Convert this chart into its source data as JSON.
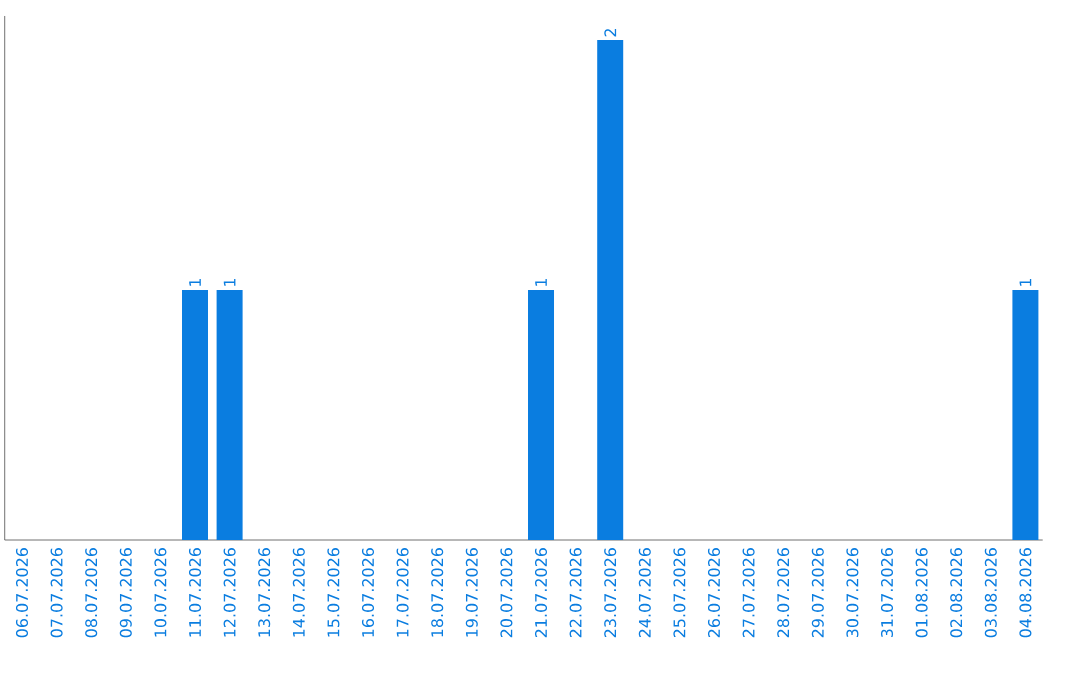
{
  "chart_data": {
    "type": "bar",
    "categories": [
      "06.07.2026",
      "07.07.2026",
      "08.07.2026",
      "09.07.2026",
      "10.07.2026",
      "11.07.2026",
      "12.07.2026",
      "13.07.2026",
      "14.07.2026",
      "15.07.2026",
      "16.07.2026",
      "17.07.2026",
      "18.07.2026",
      "19.07.2026",
      "20.07.2026",
      "21.07.2026",
      "22.07.2026",
      "23.07.2026",
      "24.07.2026",
      "25.07.2026",
      "26.07.2026",
      "27.07.2026",
      "28.07.2026",
      "29.07.2026",
      "30.07.2026",
      "31.07.2026",
      "01.08.2026",
      "02.08.2026",
      "03.08.2026",
      "04.08.2026"
    ],
    "values": [
      0,
      0,
      0,
      0,
      0,
      1,
      1,
      0,
      0,
      0,
      0,
      0,
      0,
      0,
      0,
      1,
      0,
      2,
      0,
      0,
      0,
      0,
      0,
      0,
      0,
      0,
      0,
      0,
      0,
      1
    ],
    "value_labels": [
      null,
      null,
      null,
      null,
      null,
      "1",
      "1",
      null,
      null,
      null,
      null,
      null,
      null,
      null,
      null,
      "1",
      null,
      "2",
      null,
      null,
      null,
      null,
      null,
      null,
      null,
      null,
      null,
      null,
      null,
      "1"
    ],
    "color": "#0a7de0"
  }
}
